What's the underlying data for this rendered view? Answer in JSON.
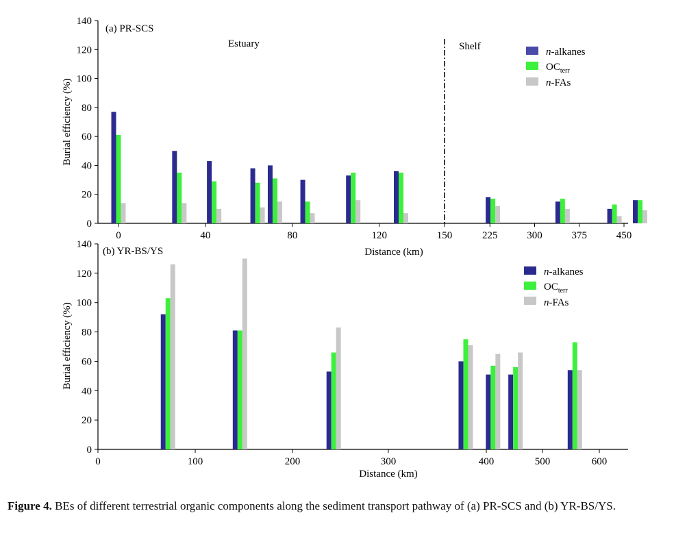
{
  "chart_data": [
    {
      "type": "bar",
      "panel_label": "(a) PR-SCS",
      "ylabel": "Burial efficiency (%)",
      "xlabel": "Distance (km)",
      "ylim": [
        0,
        140
      ],
      "yticks": [
        "0",
        "20",
        "40",
        "60",
        "80",
        "100",
        "120",
        "140"
      ],
      "region_labels": [
        "Estuary",
        "Shelf"
      ],
      "legend_position": "top-right",
      "x_scale_note": "broken axis: 0-150 km estuary, 150-480 km shelf",
      "xticks": [
        {
          "value": 0,
          "label": "0"
        },
        {
          "value": 40,
          "label": "40"
        },
        {
          "value": 80,
          "label": "80"
        },
        {
          "value": 120,
          "label": "120"
        },
        {
          "value": 150,
          "label": "150"
        },
        {
          "value": 225,
          "label": "225"
        },
        {
          "value": 300,
          "label": "300"
        },
        {
          "value": 375,
          "label": "375"
        },
        {
          "value": 450,
          "label": "450"
        }
      ],
      "x": [
        0,
        28,
        44,
        64,
        72,
        87,
        108,
        130,
        230,
        347,
        434,
        477
      ],
      "series": [
        {
          "name": "n-alkanes",
          "values": [
            77,
            50,
            43,
            38,
            40,
            30,
            33,
            36,
            18,
            15,
            10,
            16
          ]
        },
        {
          "name": "OCterr",
          "values": [
            61,
            35,
            29,
            28,
            31,
            15,
            35,
            35,
            17,
            17,
            13,
            16
          ]
        },
        {
          "name": "n-FAs",
          "values": [
            14,
            14,
            10,
            11,
            15,
            7,
            16,
            7,
            12,
            10,
            5,
            9
          ]
        }
      ]
    },
    {
      "type": "bar",
      "panel_label": "(b) YR-BS/YS",
      "ylabel": "Burial efficiency (%)",
      "xlabel": "Distance (km)",
      "ylim": [
        0,
        140
      ],
      "yticks": [
        "0",
        "20",
        "40",
        "60",
        "80",
        "100",
        "120",
        "140"
      ],
      "legend_position": "top-right",
      "xticks": [
        {
          "value": 0,
          "label": "0"
        },
        {
          "value": 100,
          "label": "100"
        },
        {
          "value": 200,
          "label": "200"
        },
        {
          "value": 300,
          "label": "300"
        },
        {
          "value": 400,
          "label": "400"
        },
        {
          "value": 500,
          "label": "500"
        },
        {
          "value": 600,
          "label": "600"
        }
      ],
      "x": [
        72,
        146,
        243,
        379,
        412,
        452,
        557
      ],
      "series": [
        {
          "name": "n-alkanes",
          "values": [
            92,
            81,
            53,
            60,
            51,
            51,
            54
          ]
        },
        {
          "name": "OCterr",
          "values": [
            103,
            81,
            66,
            75,
            57,
            56,
            73
          ]
        },
        {
          "name": "n-FAs",
          "values": [
            126,
            130,
            83,
            71,
            65,
            66,
            54
          ]
        }
      ]
    }
  ],
  "legend": {
    "n_alkanes": {
      "italic": "n",
      "rest": "-alkanes"
    },
    "oc": {
      "main": "OC",
      "sub": "terr"
    },
    "n_fas": {
      "italic": "n",
      "rest": "-FAs"
    }
  },
  "colors": {
    "n-alkanes": "#2b2b8f",
    "OCterr": "#3df03d",
    "n-FAs": "#c8c8c8",
    "legend_n_alkanes_a": "#4a4aa8"
  },
  "caption": {
    "label": "Figure 4.",
    "text": " BEs of different terrestrial organic components along the sediment transport pathway of (a) PR-SCS and (b) YR-BS/YS."
  }
}
